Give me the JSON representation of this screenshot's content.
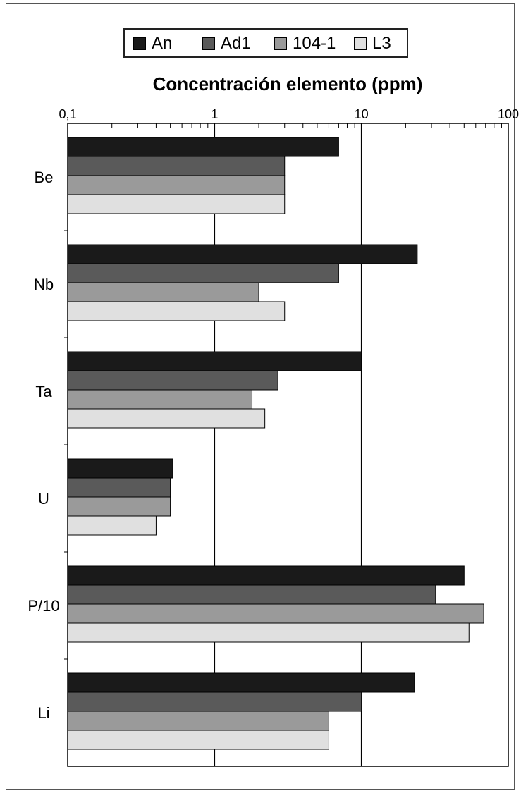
{
  "chart_data": {
    "type": "bar",
    "orientation": "horizontal",
    "xscale": "log",
    "xlim": [
      0.1,
      100
    ],
    "xticks": [
      "0,1",
      "1",
      "10",
      "100"
    ],
    "xlabel": "Concentración elemento (ppm)",
    "ylabel": "",
    "title": "",
    "legend_position": "top",
    "categories": [
      "Be",
      "Nb",
      "Ta",
      "U",
      "P/10",
      "Li"
    ],
    "series": [
      {
        "name": "An",
        "color": "#1a1a1a",
        "values": [
          7,
          24,
          10,
          0.52,
          50,
          23
        ]
      },
      {
        "name": "Ad1",
        "color": "#5a5a5a",
        "values": [
          3,
          7,
          2.7,
          0.5,
          32,
          10
        ]
      },
      {
        "name": "104-1",
        "color": "#9a9a9a",
        "values": [
          3,
          2,
          1.8,
          0.5,
          68,
          6
        ]
      },
      {
        "name": "L3",
        "color": "#e0e0e0",
        "values": [
          3,
          3,
          2.2,
          0.4,
          54,
          6
        ]
      }
    ]
  }
}
